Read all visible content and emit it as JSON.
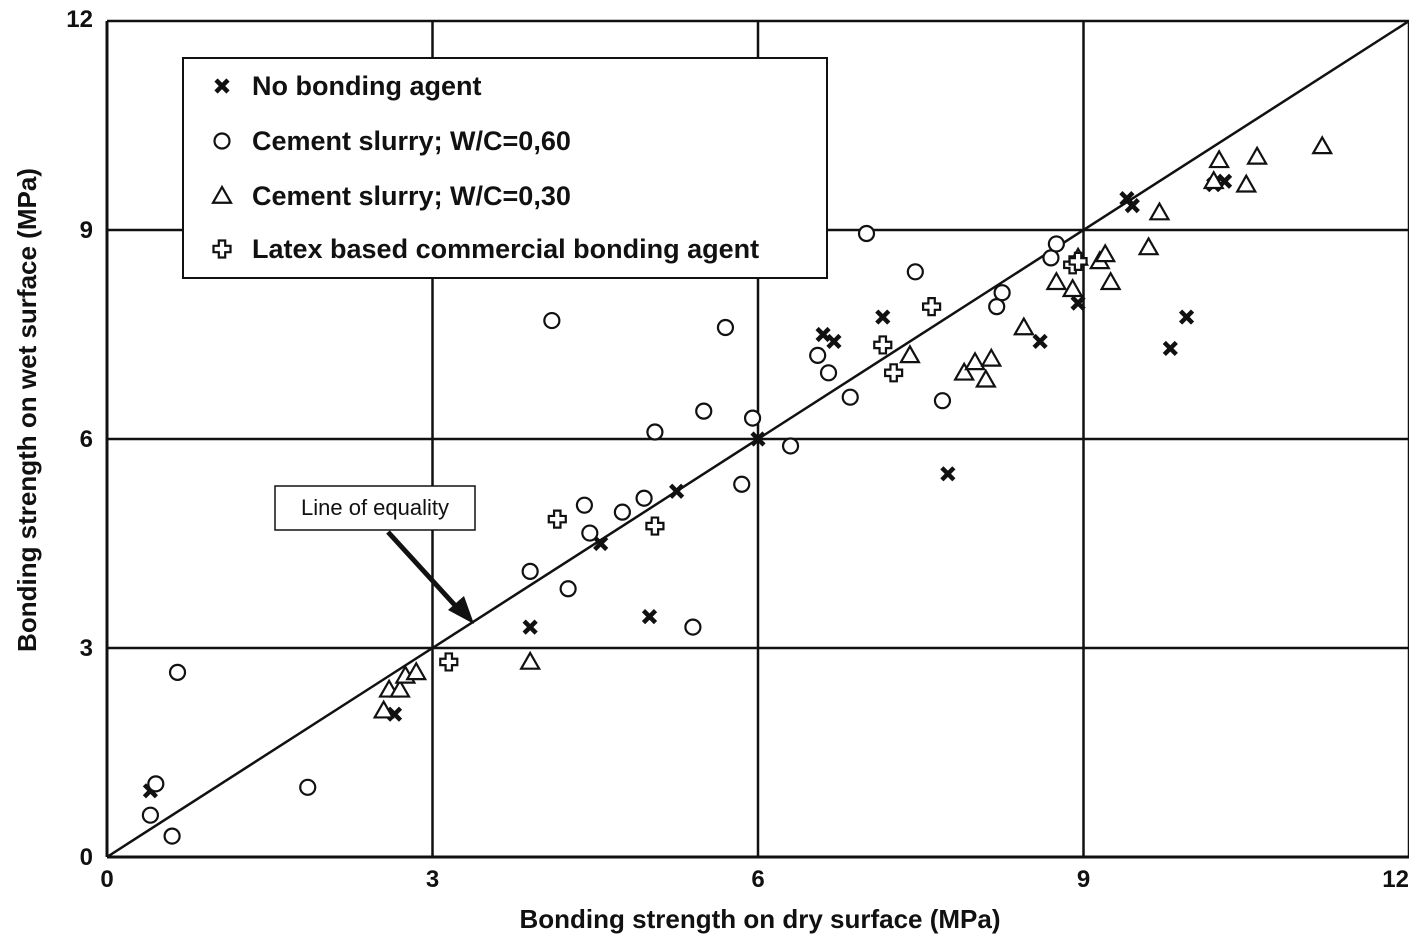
{
  "chart_data": {
    "type": "scatter",
    "title": "",
    "xlabel": "Bonding strength on dry surface (MPa)",
    "ylabel": "Bonding strength on wet surface (MPa)",
    "xlim": [
      0,
      12
    ],
    "ylim": [
      0,
      12
    ],
    "xticks": [
      0,
      3,
      6,
      9,
      12
    ],
    "yticks": [
      0,
      3,
      6,
      9,
      12
    ],
    "xtick_labels": [
      "0",
      "3",
      "6",
      "9",
      "12"
    ],
    "ytick_labels": [
      "0",
      "3",
      "6",
      "9",
      "12"
    ],
    "grid": true,
    "legend_position": "top-left",
    "reference_line": {
      "label": "Line of equality",
      "x": [
        0,
        12
      ],
      "y": [
        0,
        12
      ]
    },
    "annotation": {
      "text": "Line of equality",
      "points_to": [
        3.3,
        3.3
      ]
    },
    "series": [
      {
        "name": "No bonding agent",
        "marker": "x",
        "points": [
          [
            0.4,
            0.95
          ],
          [
            2.65,
            2.05
          ],
          [
            3.9,
            3.3
          ],
          [
            4.55,
            4.5
          ],
          [
            5.0,
            3.45
          ],
          [
            5.25,
            5.25
          ],
          [
            6.0,
            6.0
          ],
          [
            6.6,
            7.5
          ],
          [
            6.7,
            7.4
          ],
          [
            7.15,
            7.75
          ],
          [
            7.75,
            5.5
          ],
          [
            8.6,
            7.4
          ],
          [
            8.95,
            7.95
          ],
          [
            9.4,
            9.45
          ],
          [
            9.45,
            9.35
          ],
          [
            9.8,
            7.3
          ],
          [
            9.95,
            7.75
          ],
          [
            10.2,
            9.65
          ],
          [
            10.3,
            9.7
          ]
        ]
      },
      {
        "name": "Cement slurry; W/C=0,60",
        "marker": "circle",
        "points": [
          [
            0.4,
            0.6
          ],
          [
            0.45,
            1.05
          ],
          [
            0.6,
            0.3
          ],
          [
            0.65,
            2.65
          ],
          [
            1.85,
            1.0
          ],
          [
            3.9,
            4.1
          ],
          [
            4.1,
            7.7
          ],
          [
            4.25,
            3.85
          ],
          [
            4.4,
            5.05
          ],
          [
            4.45,
            4.65
          ],
          [
            4.75,
            4.95
          ],
          [
            4.95,
            5.15
          ],
          [
            5.05,
            6.1
          ],
          [
            5.4,
            3.3
          ],
          [
            5.5,
            6.4
          ],
          [
            5.7,
            7.6
          ],
          [
            5.85,
            5.35
          ],
          [
            5.95,
            6.3
          ],
          [
            6.3,
            5.9
          ],
          [
            6.55,
            7.2
          ],
          [
            6.65,
            6.95
          ],
          [
            6.85,
            6.6
          ],
          [
            7.0,
            8.95
          ],
          [
            7.45,
            8.4
          ],
          [
            7.7,
            6.55
          ],
          [
            8.2,
            7.9
          ],
          [
            8.25,
            8.1
          ],
          [
            8.7,
            8.6
          ],
          [
            8.75,
            8.8
          ]
        ]
      },
      {
        "name": "Cement slurry; W/C=0,30",
        "marker": "triangle",
        "points": [
          [
            2.55,
            2.1
          ],
          [
            2.6,
            2.4
          ],
          [
            2.7,
            2.4
          ],
          [
            2.75,
            2.6
          ],
          [
            2.85,
            2.65
          ],
          [
            3.9,
            2.8
          ],
          [
            7.4,
            7.2
          ],
          [
            7.9,
            6.95
          ],
          [
            8.0,
            7.1
          ],
          [
            8.1,
            6.85
          ],
          [
            8.15,
            7.15
          ],
          [
            8.45,
            7.6
          ],
          [
            8.75,
            8.25
          ],
          [
            8.9,
            8.15
          ],
          [
            8.95,
            8.6
          ],
          [
            9.15,
            8.55
          ],
          [
            9.2,
            8.65
          ],
          [
            9.25,
            8.25
          ],
          [
            9.6,
            8.75
          ],
          [
            9.7,
            9.25
          ],
          [
            10.2,
            9.7
          ],
          [
            10.25,
            10.0
          ],
          [
            10.5,
            9.65
          ],
          [
            10.6,
            10.05
          ],
          [
            11.2,
            10.2
          ]
        ]
      },
      {
        "name": "Latex based commercial bonding agent",
        "marker": "plus",
        "points": [
          [
            3.15,
            2.8
          ],
          [
            4.15,
            4.85
          ],
          [
            5.05,
            4.75
          ],
          [
            7.15,
            7.35
          ],
          [
            7.25,
            6.95
          ],
          [
            7.6,
            7.9
          ],
          [
            8.9,
            8.5
          ],
          [
            8.95,
            8.55
          ]
        ]
      }
    ]
  }
}
